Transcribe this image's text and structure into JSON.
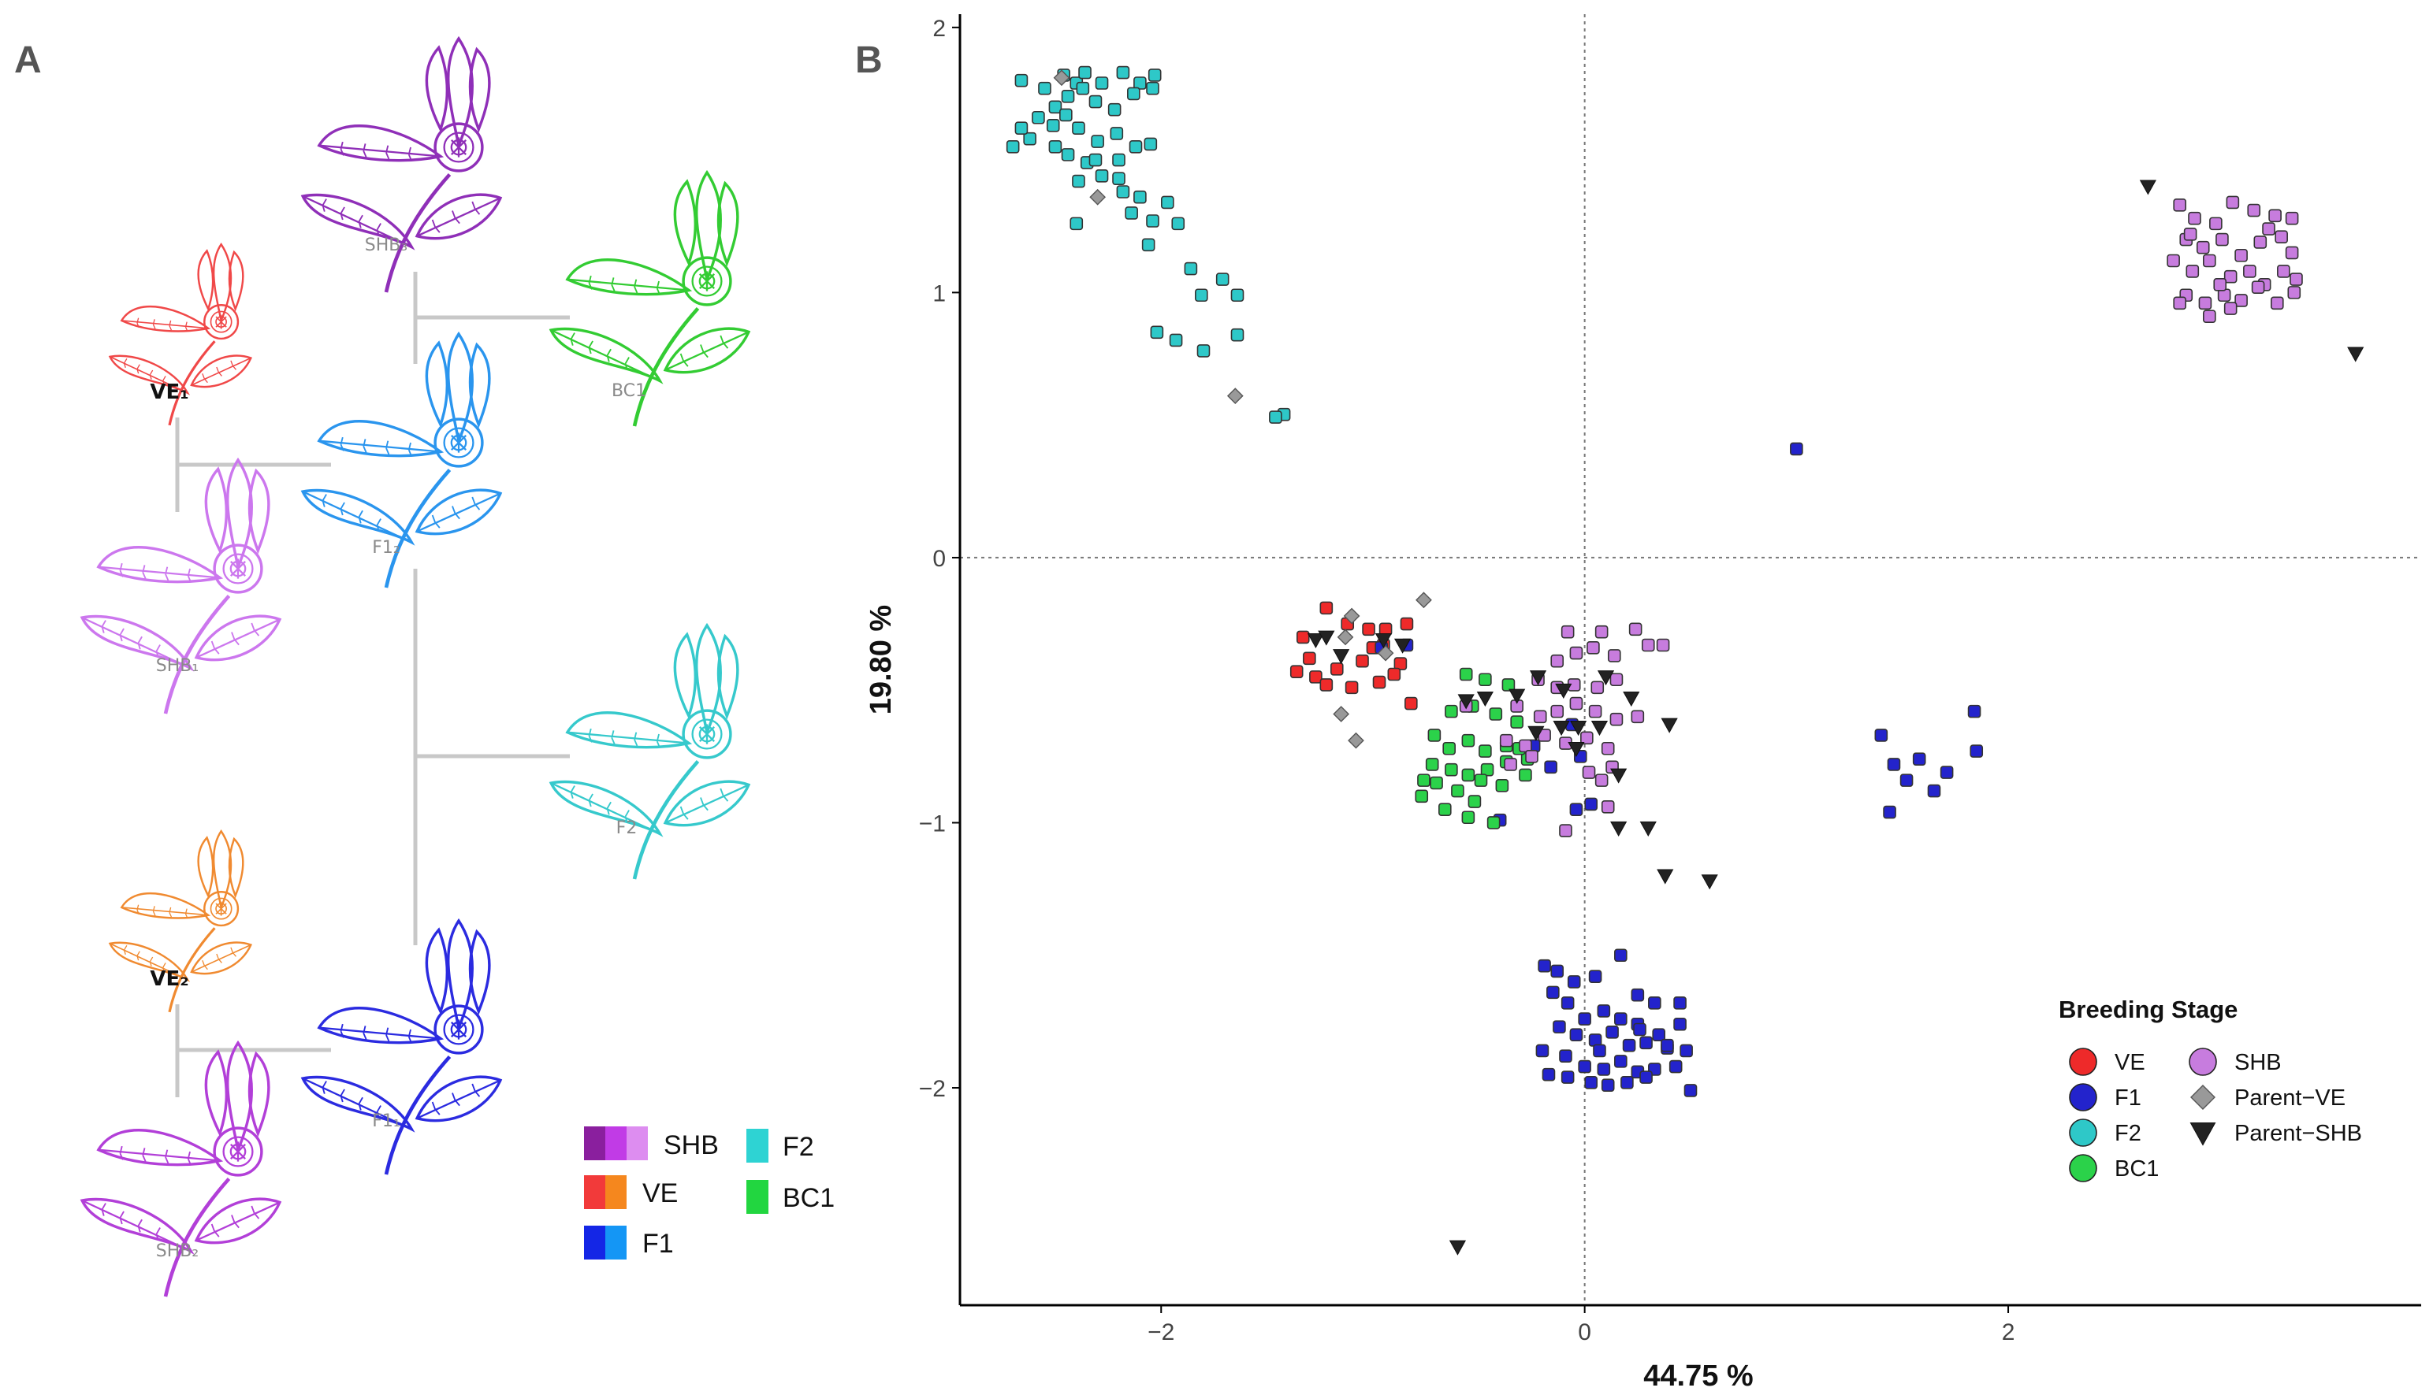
{
  "panel_a": {
    "label": "A",
    "plants": [
      {
        "id": "shb3",
        "label": "SHB₃",
        "color": "#8f2fb8",
        "bold": false
      },
      {
        "id": "bc1",
        "label": "BC1",
        "color": "#33cc33",
        "bold": false
      },
      {
        "id": "ve1",
        "label": "VE₁",
        "color": "#f04848",
        "bold": true
      },
      {
        "id": "f12",
        "label": "F1₂",
        "color": "#2a95ee",
        "bold": false
      },
      {
        "id": "shb1",
        "label": "SHB₁",
        "color": "#cc77ee",
        "bold": false
      },
      {
        "id": "f2",
        "label": "F2",
        "color": "#36c9cc",
        "bold": false
      },
      {
        "id": "ve2",
        "label": "VE₂",
        "color": "#f08a30",
        "bold": true
      },
      {
        "id": "f11",
        "label": "F1₁",
        "color": "#2b2be0",
        "bold": false
      },
      {
        "id": "shb2",
        "label": "SHB₂",
        "color": "#b23fd8",
        "bold": false
      }
    ],
    "legend": [
      {
        "label": "SHB",
        "colors": [
          "#8a1f9e",
          "#c13be6",
          "#dd8df0"
        ]
      },
      {
        "label": "VE",
        "colors": [
          "#f23a3a",
          "#f5871e"
        ]
      },
      {
        "label": "F1",
        "colors": [
          "#1426e6",
          "#1496f5"
        ]
      },
      {
        "label": "F2",
        "colors": [
          "#2ed3d3"
        ]
      },
      {
        "label": "BC1",
        "colors": [
          "#22d640"
        ]
      }
    ]
  },
  "panel_b": {
    "label": "B"
  },
  "chart_data": {
    "type": "scatter",
    "title": "",
    "xlabel": "44.75 %",
    "ylabel": "19.80 %",
    "xlim": [
      -2.95,
      3.95
    ],
    "ylim": [
      -2.82,
      2.05
    ],
    "xticks": [
      -2,
      0,
      2
    ],
    "yticks": [
      -2,
      -1,
      0,
      1,
      2
    ],
    "tick_labels_x": [
      "−2",
      "0",
      "2"
    ],
    "tick_labels_y": [
      "−2",
      "−1",
      "0",
      "1",
      "2"
    ],
    "reference_lines": {
      "x": 0,
      "y": 0
    },
    "legend_title": "Breeding Stage",
    "legend_position": "bottom-right",
    "legend_items": [
      "VE",
      "F1",
      "F2",
      "BC1",
      "SHB",
      "Parent−VE",
      "Parent−SHB"
    ],
    "series": [
      {
        "name": "VE",
        "color": "#ee2a2a",
        "shape": "square",
        "points": [
          [
            -1.33,
            -0.3
          ],
          [
            -1.22,
            -0.19
          ],
          [
            -1.12,
            -0.25
          ],
          [
            -1.02,
            -0.27
          ],
          [
            -0.94,
            -0.27
          ],
          [
            -0.84,
            -0.25
          ],
          [
            -1.3,
            -0.38
          ],
          [
            -1.17,
            -0.42
          ],
          [
            -1.05,
            -0.39
          ],
          [
            -0.95,
            -0.33
          ],
          [
            -0.87,
            -0.4
          ],
          [
            -1.27,
            -0.45
          ],
          [
            -1.22,
            -0.48
          ],
          [
            -1.1,
            -0.49
          ],
          [
            -0.97,
            -0.47
          ],
          [
            -0.9,
            -0.44
          ],
          [
            -0.82,
            -0.55
          ],
          [
            -1.0,
            -0.34
          ],
          [
            -1.36,
            -0.43
          ]
        ]
      },
      {
        "name": "F1",
        "color": "#2323cc",
        "shape": "square",
        "points": [
          [
            -0.19,
            -1.54
          ],
          [
            -0.13,
            -1.56
          ],
          [
            -0.05,
            -1.6
          ],
          [
            0.05,
            -1.58
          ],
          [
            0.17,
            -1.5
          ],
          [
            0.25,
            -1.65
          ],
          [
            0.33,
            -1.68
          ],
          [
            0.45,
            -1.68
          ],
          [
            -0.15,
            -1.64
          ],
          [
            -0.08,
            -1.68
          ],
          [
            0.0,
            -1.74
          ],
          [
            0.09,
            -1.71
          ],
          [
            0.17,
            -1.74
          ],
          [
            0.25,
            -1.76
          ],
          [
            0.35,
            -1.8
          ],
          [
            0.45,
            -1.76
          ],
          [
            -0.12,
            -1.77
          ],
          [
            -0.04,
            -1.8
          ],
          [
            0.05,
            -1.82
          ],
          [
            0.13,
            -1.79
          ],
          [
            0.21,
            -1.84
          ],
          [
            0.29,
            -1.83
          ],
          [
            0.39,
            -1.85
          ],
          [
            0.48,
            -1.86
          ],
          [
            -0.09,
            -1.88
          ],
          [
            0.0,
            -1.92
          ],
          [
            0.09,
            -1.93
          ],
          [
            0.17,
            -1.9
          ],
          [
            0.25,
            -1.94
          ],
          [
            0.33,
            -1.93
          ],
          [
            0.43,
            -1.92
          ],
          [
            -0.17,
            -1.95
          ],
          [
            -0.08,
            -1.96
          ],
          [
            0.03,
            -1.98
          ],
          [
            0.11,
            -1.99
          ],
          [
            0.2,
            -1.98
          ],
          [
            0.29,
            -1.96
          ],
          [
            0.5,
            -2.01
          ],
          [
            0.39,
            -1.84
          ],
          [
            -0.2,
            -1.86
          ],
          [
            0.07,
            -1.86
          ],
          [
            0.26,
            -1.78
          ],
          [
            1.0,
            0.41
          ],
          [
            1.4,
            -0.67
          ],
          [
            1.46,
            -0.78
          ],
          [
            1.52,
            -0.84
          ],
          [
            1.58,
            -0.76
          ],
          [
            1.65,
            -0.88
          ],
          [
            1.71,
            -0.81
          ],
          [
            1.44,
            -0.96
          ],
          [
            1.84,
            -0.58
          ],
          [
            1.85,
            -0.73
          ],
          [
            -0.06,
            -0.63
          ],
          [
            -0.02,
            -0.75
          ],
          [
            -0.16,
            -0.79
          ],
          [
            -0.24,
            -0.71
          ],
          [
            -0.4,
            -0.99
          ],
          [
            -0.04,
            -0.95
          ],
          [
            0.03,
            -0.93
          ],
          [
            -0.84,
            -0.33
          ],
          [
            -0.96,
            -0.34
          ]
        ]
      },
      {
        "name": "F2",
        "color": "#2ec8c8",
        "shape": "square",
        "points": [
          [
            -2.66,
            1.8
          ],
          [
            -2.55,
            1.77
          ],
          [
            -2.46,
            1.82
          ],
          [
            -2.4,
            1.79
          ],
          [
            -2.36,
            1.83
          ],
          [
            -2.28,
            1.79
          ],
          [
            -2.18,
            1.83
          ],
          [
            -2.1,
            1.79
          ],
          [
            -2.03,
            1.82
          ],
          [
            -2.5,
            1.7
          ],
          [
            -2.44,
            1.74
          ],
          [
            -2.37,
            1.77
          ],
          [
            -2.31,
            1.72
          ],
          [
            -2.22,
            1.69
          ],
          [
            -2.13,
            1.75
          ],
          [
            -2.04,
            1.77
          ],
          [
            -2.58,
            1.66
          ],
          [
            -2.51,
            1.63
          ],
          [
            -2.45,
            1.67
          ],
          [
            -2.39,
            1.62
          ],
          [
            -2.3,
            1.57
          ],
          [
            -2.21,
            1.6
          ],
          [
            -2.12,
            1.55
          ],
          [
            -2.05,
            1.56
          ],
          [
            -2.7,
            1.55
          ],
          [
            -2.62,
            1.58
          ],
          [
            -2.5,
            1.55
          ],
          [
            -2.44,
            1.52
          ],
          [
            -2.35,
            1.49
          ],
          [
            -2.28,
            1.44
          ],
          [
            -2.2,
            1.43
          ],
          [
            -2.39,
            1.42
          ],
          [
            -2.31,
            1.5
          ],
          [
            -2.18,
            1.38
          ],
          [
            -2.1,
            1.36
          ],
          [
            -2.14,
            1.3
          ],
          [
            -2.04,
            1.27
          ],
          [
            -1.97,
            1.34
          ],
          [
            -1.92,
            1.26
          ],
          [
            -2.06,
            1.18
          ],
          [
            -1.86,
            1.09
          ],
          [
            -1.81,
            0.99
          ],
          [
            -1.71,
            1.05
          ],
          [
            -1.64,
            0.99
          ],
          [
            -1.93,
            0.82
          ],
          [
            -1.8,
            0.78
          ],
          [
            -1.64,
            0.84
          ],
          [
            -1.42,
            0.54
          ],
          [
            -1.46,
            0.53
          ],
          [
            -2.02,
            0.85
          ],
          [
            -2.4,
            1.26
          ],
          [
            -2.2,
            1.5
          ],
          [
            -2.66,
            1.62
          ]
        ]
      },
      {
        "name": "BC1",
        "color": "#2bd24a",
        "shape": "square",
        "points": [
          [
            -0.56,
            -0.44
          ],
          [
            -0.47,
            -0.46
          ],
          [
            -0.36,
            -0.48
          ],
          [
            -0.63,
            -0.58
          ],
          [
            -0.53,
            -0.56
          ],
          [
            -0.42,
            -0.59
          ],
          [
            -0.32,
            -0.62
          ],
          [
            -0.71,
            -0.67
          ],
          [
            -0.64,
            -0.72
          ],
          [
            -0.55,
            -0.69
          ],
          [
            -0.47,
            -0.73
          ],
          [
            -0.37,
            -0.71
          ],
          [
            -0.27,
            -0.76
          ],
          [
            -0.72,
            -0.78
          ],
          [
            -0.63,
            -0.8
          ],
          [
            -0.55,
            -0.82
          ],
          [
            -0.46,
            -0.8
          ],
          [
            -0.37,
            -0.77
          ],
          [
            -0.28,
            -0.82
          ],
          [
            -0.7,
            -0.85
          ],
          [
            -0.6,
            -0.88
          ],
          [
            -0.49,
            -0.84
          ],
          [
            -0.39,
            -0.86
          ],
          [
            -0.77,
            -0.9
          ],
          [
            -0.66,
            -0.95
          ],
          [
            -0.55,
            -0.98
          ],
          [
            -0.43,
            -1.0
          ],
          [
            -0.76,
            -0.84
          ],
          [
            -0.31,
            -0.72
          ],
          [
            -0.52,
            -0.92
          ]
        ]
      },
      {
        "name": "SHB",
        "color": "#c77cde",
        "shape": "square",
        "points": [
          [
            -0.08,
            -0.28
          ],
          [
            0.08,
            -0.28
          ],
          [
            0.24,
            -0.27
          ],
          [
            0.3,
            -0.33
          ],
          [
            0.37,
            -0.33
          ],
          [
            -0.13,
            -0.39
          ],
          [
            -0.04,
            -0.36
          ],
          [
            0.04,
            -0.34
          ],
          [
            0.14,
            -0.37
          ],
          [
            -0.22,
            -0.46
          ],
          [
            -0.13,
            -0.49
          ],
          [
            -0.05,
            -0.48
          ],
          [
            0.06,
            -0.49
          ],
          [
            0.15,
            -0.46
          ],
          [
            -0.32,
            -0.56
          ],
          [
            -0.21,
            -0.6
          ],
          [
            -0.13,
            -0.58
          ],
          [
            -0.04,
            -0.55
          ],
          [
            0.05,
            -0.58
          ],
          [
            0.15,
            -0.61
          ],
          [
            0.25,
            -0.6
          ],
          [
            -0.37,
            -0.69
          ],
          [
            -0.28,
            -0.71
          ],
          [
            -0.19,
            -0.67
          ],
          [
            -0.09,
            -0.7
          ],
          [
            0.01,
            -0.68
          ],
          [
            0.11,
            -0.72
          ],
          [
            -0.35,
            -0.78
          ],
          [
            -0.25,
            -0.75
          ],
          [
            0.02,
            -0.81
          ],
          [
            0.08,
            -0.84
          ],
          [
            0.13,
            -0.79
          ],
          [
            0.11,
            -0.94
          ],
          [
            -0.09,
            -1.03
          ],
          [
            -0.56,
            -0.56
          ],
          [
            2.81,
            1.33
          ],
          [
            2.88,
            1.28
          ],
          [
            2.98,
            1.26
          ],
          [
            3.06,
            1.34
          ],
          [
            3.16,
            1.31
          ],
          [
            3.26,
            1.29
          ],
          [
            3.34,
            1.28
          ],
          [
            2.84,
            1.2
          ],
          [
            2.92,
            1.17
          ],
          [
            3.01,
            1.2
          ],
          [
            3.1,
            1.14
          ],
          [
            3.19,
            1.19
          ],
          [
            3.29,
            1.21
          ],
          [
            3.34,
            1.15
          ],
          [
            2.78,
            1.12
          ],
          [
            2.87,
            1.08
          ],
          [
            2.95,
            1.12
          ],
          [
            3.05,
            1.06
          ],
          [
            3.14,
            1.08
          ],
          [
            3.21,
            1.03
          ],
          [
            3.3,
            1.08
          ],
          [
            3.36,
            1.05
          ],
          [
            2.84,
            0.99
          ],
          [
            2.93,
            0.96
          ],
          [
            3.02,
            0.99
          ],
          [
            3.1,
            0.97
          ],
          [
            3.18,
            1.02
          ],
          [
            3.27,
            0.96
          ],
          [
            3.35,
            1.0
          ],
          [
            2.81,
            0.96
          ],
          [
            2.95,
            0.91
          ],
          [
            3.05,
            0.94
          ],
          [
            2.86,
            1.22
          ],
          [
            3.23,
            1.24
          ],
          [
            3.0,
            1.03
          ]
        ]
      },
      {
        "name": "Parent−VE",
        "color": "#999999",
        "shape": "diamond",
        "points": [
          [
            -2.47,
            1.81
          ],
          [
            -2.3,
            1.36
          ],
          [
            -1.65,
            0.61
          ],
          [
            -1.15,
            -0.59
          ],
          [
            -1.08,
            -0.69
          ],
          [
            -0.94,
            -0.36
          ],
          [
            -0.76,
            -0.16
          ],
          [
            -1.13,
            -0.3
          ],
          [
            -1.1,
            -0.22
          ]
        ]
      },
      {
        "name": "Parent−SHB",
        "color": "#222222",
        "shape": "triangle",
        "points": [
          [
            2.66,
            1.4
          ],
          [
            3.64,
            0.77
          ],
          [
            -1.27,
            -0.31
          ],
          [
            -1.22,
            -0.3
          ],
          [
            -1.15,
            -0.37
          ],
          [
            -0.95,
            -0.31
          ],
          [
            -0.86,
            -0.33
          ],
          [
            -0.56,
            -0.54
          ],
          [
            -0.47,
            -0.53
          ],
          [
            -0.32,
            -0.52
          ],
          [
            -0.22,
            -0.45
          ],
          [
            -0.1,
            -0.5
          ],
          [
            0.1,
            -0.45
          ],
          [
            0.22,
            -0.53
          ],
          [
            0.4,
            -0.63
          ],
          [
            -0.11,
            -0.64
          ],
          [
            -0.03,
            -0.64
          ],
          [
            0.07,
            -0.64
          ],
          [
            -0.04,
            -0.72
          ],
          [
            -0.23,
            -0.66
          ],
          [
            0.16,
            -0.82
          ],
          [
            0.16,
            -1.02
          ],
          [
            0.3,
            -1.02
          ],
          [
            0.38,
            -1.2
          ],
          [
            0.59,
            -1.22
          ],
          [
            -0.6,
            -2.6
          ]
        ]
      }
    ]
  }
}
